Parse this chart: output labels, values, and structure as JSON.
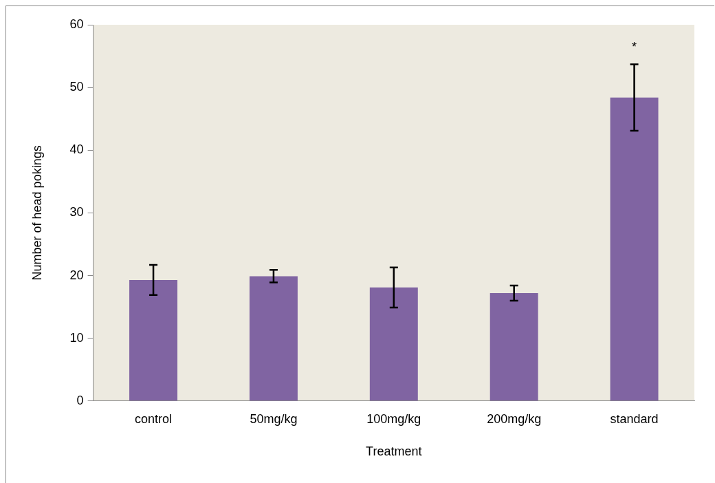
{
  "chart_data": {
    "type": "bar",
    "xlabel": "Treatment",
    "ylabel": "Number of head pokings",
    "categories": [
      "control",
      "50mg/kg",
      "100mg/kg",
      "200mg/kg",
      "standard"
    ],
    "values": [
      19.3,
      19.9,
      18.1,
      17.2,
      48.4
    ],
    "errors": [
      2.4,
      1.0,
      3.2,
      1.2,
      5.3
    ],
    "color": "#8064a2",
    "ylim": [
      0,
      60
    ],
    "yticks": [
      0,
      10,
      20,
      30,
      40,
      50,
      60
    ],
    "grid": false,
    "legend": false,
    "annotations": [
      "*"
    ]
  }
}
